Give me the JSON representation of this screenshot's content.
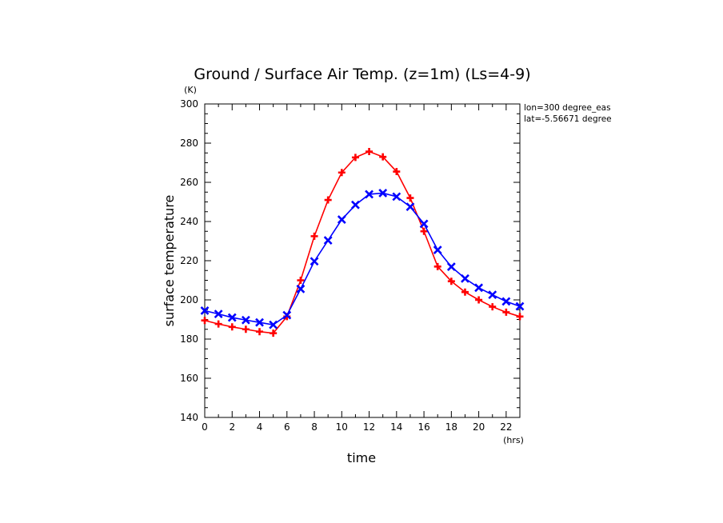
{
  "chart_data": {
    "type": "line",
    "title": "Ground / Surface Air Temp. (z=1m) (Ls=4-9)",
    "xlabel": "time",
    "ylabel": "surface temperature",
    "x_unit": "(hrs)",
    "y_unit": "(K)",
    "xlim": [
      0,
      23
    ],
    "ylim": [
      140,
      300
    ],
    "xticks": [
      0,
      2,
      4,
      6,
      8,
      10,
      12,
      14,
      16,
      18,
      20,
      22
    ],
    "yticks": [
      140,
      160,
      180,
      200,
      220,
      240,
      260,
      280,
      300
    ],
    "grid": false,
    "annotations": [
      "lon=300 degree_eas",
      "lat=-5.56671 degree"
    ],
    "x": [
      0,
      1,
      2,
      3,
      4,
      5,
      6,
      7,
      8,
      9,
      10,
      11,
      12,
      13,
      14,
      15,
      16,
      17,
      18,
      19,
      20,
      21,
      22,
      23
    ],
    "series": [
      {
        "color": "#ff0000",
        "marker": "plus",
        "values": [
          189.5,
          187.7,
          186.2,
          185.0,
          183.8,
          183.0,
          191.5,
          210.0,
          232.5,
          251.0,
          265.0,
          272.7,
          275.7,
          273.0,
          265.5,
          252.0,
          235.0,
          217.0,
          209.5,
          204.0,
          200.0,
          196.5,
          193.7,
          191.5
        ]
      },
      {
        "color": "#0000ff",
        "marker": "x",
        "values": [
          194.5,
          192.8,
          191.0,
          189.7,
          188.5,
          187.3,
          192.2,
          205.6,
          219.7,
          230.4,
          241.0,
          248.5,
          253.9,
          254.5,
          252.7,
          247.5,
          238.8,
          225.5,
          216.9,
          210.9,
          206.2,
          202.6,
          199.2,
          196.7
        ]
      }
    ]
  }
}
